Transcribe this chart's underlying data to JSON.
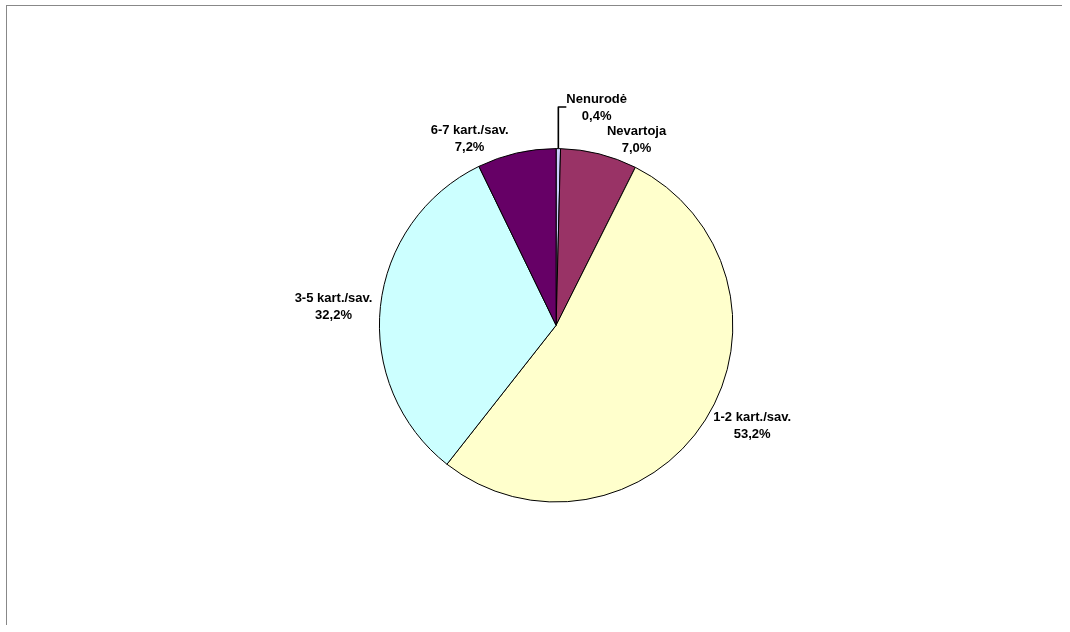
{
  "chart_data": {
    "type": "pie",
    "categories": [
      "Nenurodė",
      "Nevartoja",
      "1-2 kart./sav.",
      "3-5 kart./sav.",
      "6-7 kart./sav."
    ],
    "values": [
      0.4,
      7.0,
      53.2,
      32.2,
      7.2
    ],
    "value_labels": [
      "0,4%",
      "7,0%",
      "53,2%",
      "32,2%",
      "7,2%"
    ],
    "colors": [
      "#ccccff",
      "#993366",
      "#ffffcc",
      "#ccffff",
      "#660066"
    ],
    "legend": false
  }
}
